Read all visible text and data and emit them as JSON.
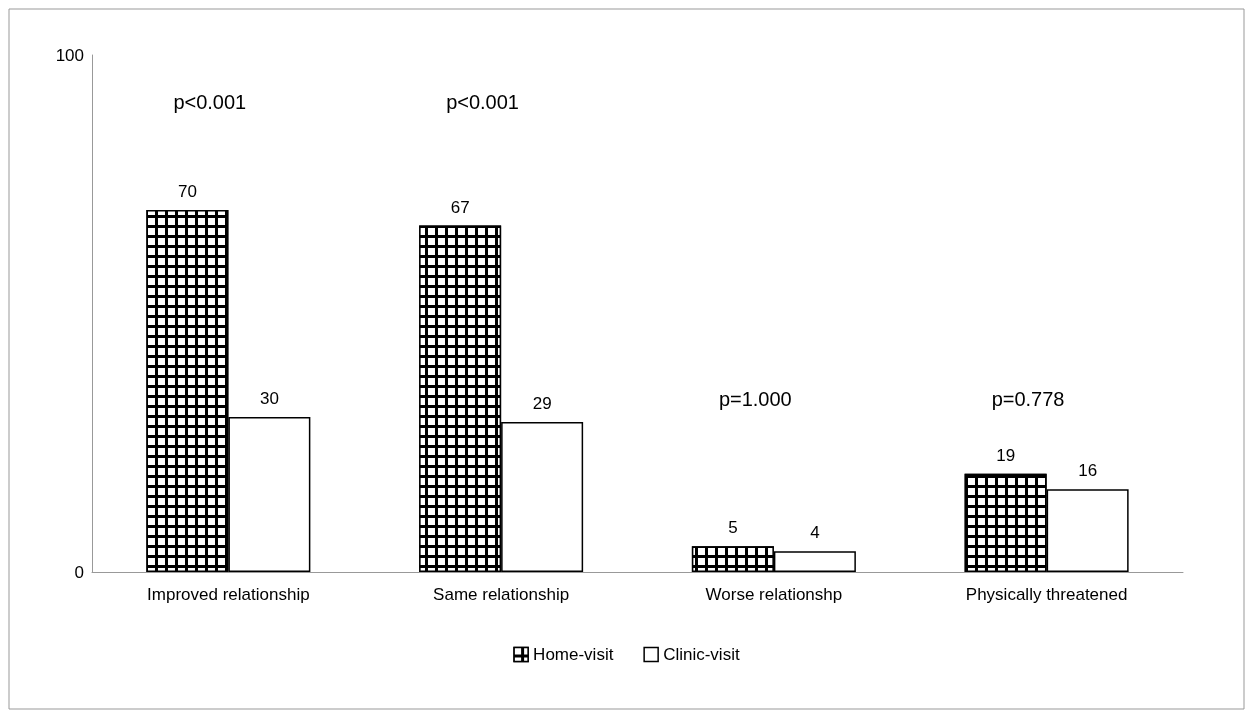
{
  "chart_data": {
    "type": "bar",
    "categories": [
      "Improved relationship",
      "Same relationship",
      "Worse relationshp",
      "Physically threatened"
    ],
    "series": [
      {
        "name": "Home-visit",
        "color": "#000000",
        "values": [
          70,
          67,
          5,
          19
        ]
      },
      {
        "name": "Clinic-visit",
        "color": "#ffffff",
        "values": [
          30,
          29,
          4,
          16
        ]
      }
    ],
    "ylim": [
      0,
      100
    ],
    "yticks": [
      0,
      100
    ],
    "data_labels": true,
    "grid": false,
    "legend": "bottom",
    "annotations": [
      "p<0.001",
      "p<0.001",
      "p=1.000",
      "p=0.778"
    ]
  }
}
